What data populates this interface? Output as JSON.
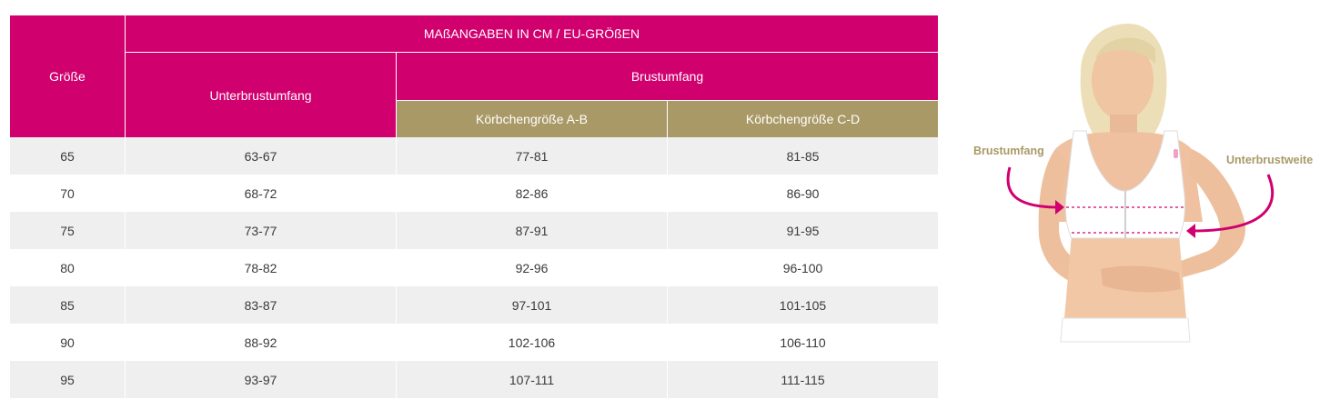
{
  "table": {
    "group_header": "MAßANGABEN IN CM / EU-GRÖßEN",
    "size_header": "Größe",
    "underbust_header": "Unterbrustumfang",
    "bust_header": "Brustumfang",
    "cup_ab_header": "Körbchengröße A-B",
    "cup_cd_header": "Körbchengröße C-D",
    "rows": [
      {
        "size": "65",
        "underbust": "63-67",
        "cup_ab": "77-81",
        "cup_cd": "81-85"
      },
      {
        "size": "70",
        "underbust": "68-72",
        "cup_ab": "82-86",
        "cup_cd": "86-90"
      },
      {
        "size": "75",
        "underbust": "73-77",
        "cup_ab": "87-91",
        "cup_cd": "91-95"
      },
      {
        "size": "80",
        "underbust": "78-82",
        "cup_ab": "92-96",
        "cup_cd": "96-100"
      },
      {
        "size": "85",
        "underbust": "83-87",
        "cup_ab": "97-101",
        "cup_cd": "101-105"
      },
      {
        "size": "90",
        "underbust": "88-92",
        "cup_ab": "102-106",
        "cup_cd": "106-110"
      },
      {
        "size": "95",
        "underbust": "93-97",
        "cup_ab": "107-111",
        "cup_cd": "111-115"
      }
    ]
  },
  "illustration": {
    "label_bust": "Brustumfang",
    "label_underbust": "Unterbrustweite"
  },
  "colors": {
    "magenta": "#d1006f",
    "gold": "#a99966",
    "row_alt": "#efefef",
    "text": "#3a3a3a"
  }
}
